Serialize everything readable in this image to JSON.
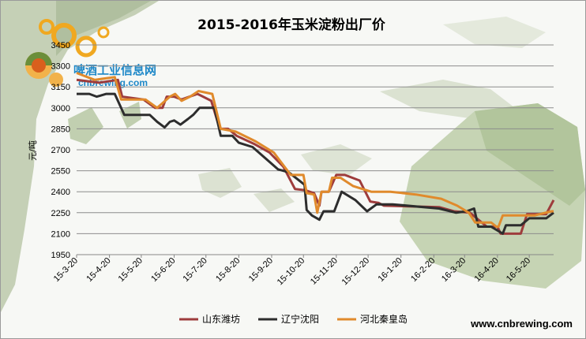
{
  "chart_data": {
    "type": "line",
    "title": "2015-2016年玉米淀粉出厂价",
    "ylabel": "元/吨",
    "xlabel": "",
    "ylim": [
      1950,
      3450
    ],
    "yticks": [
      1950,
      2100,
      2250,
      2400,
      2550,
      2700,
      2850,
      3000,
      3150,
      3300,
      3450
    ],
    "x_range": [
      "2015-03-20",
      "2016-06-12"
    ],
    "xtick_labels": [
      "15-3-20",
      "15-4-20",
      "15-5-20",
      "15-6-20",
      "15-7-20",
      "15-8-20",
      "15-9-20",
      "15-10-20",
      "15-11-20",
      "15-12-20",
      "16-1-20",
      "16-2-20",
      "16-3-20",
      "16-4-20",
      "16-5-20"
    ],
    "grid": "horizontal",
    "legend_position": "bottom",
    "series": [
      {
        "name": "山东潍坊",
        "color": "#9e3c3c",
        "points": [
          [
            "2015-03-20",
            3200
          ],
          [
            "2015-04-10",
            3180
          ],
          [
            "2015-04-28",
            3200
          ],
          [
            "2015-05-02",
            3080
          ],
          [
            "2015-05-22",
            3060
          ],
          [
            "2015-06-02",
            3000
          ],
          [
            "2015-06-09",
            3000
          ],
          [
            "2015-06-13",
            3080
          ],
          [
            "2015-06-20",
            3080
          ],
          [
            "2015-06-27",
            3060
          ],
          [
            "2015-07-12",
            3100
          ],
          [
            "2015-07-25",
            3050
          ],
          [
            "2015-08-02",
            2850
          ],
          [
            "2015-08-10",
            2850
          ],
          [
            "2015-08-18",
            2800
          ],
          [
            "2015-09-04",
            2740
          ],
          [
            "2015-09-18",
            2680
          ],
          [
            "2015-10-01",
            2580
          ],
          [
            "2015-10-12",
            2420
          ],
          [
            "2015-10-22",
            2410
          ],
          [
            "2015-10-30",
            2390
          ],
          [
            "2015-11-04",
            2300
          ],
          [
            "2015-11-06",
            2400
          ],
          [
            "2015-11-13",
            2400
          ],
          [
            "2015-11-20",
            2520
          ],
          [
            "2015-11-28",
            2520
          ],
          [
            "2015-12-12",
            2480
          ],
          [
            "2015-12-22",
            2330
          ],
          [
            "2015-12-30",
            2320
          ],
          [
            "2016-01-04",
            2300
          ],
          [
            "2016-02-25",
            2290
          ],
          [
            "2016-03-10",
            2260
          ],
          [
            "2016-03-25",
            2250
          ],
          [
            "2016-04-10",
            2150
          ],
          [
            "2016-04-20",
            2150
          ],
          [
            "2016-04-23",
            2100
          ],
          [
            "2016-05-12",
            2100
          ],
          [
            "2016-05-18",
            2240
          ],
          [
            "2016-06-05",
            2240
          ],
          [
            "2016-06-12",
            2340
          ]
        ]
      },
      {
        "name": "辽宁沈阳",
        "color": "#2d2d2d",
        "points": [
          [
            "2015-03-20",
            3100
          ],
          [
            "2015-04-01",
            3100
          ],
          [
            "2015-04-08",
            3080
          ],
          [
            "2015-04-17",
            3100
          ],
          [
            "2015-04-25",
            3100
          ],
          [
            "2015-05-04",
            2950
          ],
          [
            "2015-05-16",
            2950
          ],
          [
            "2015-05-28",
            2950
          ],
          [
            "2015-06-04",
            2900
          ],
          [
            "2015-06-11",
            2860
          ],
          [
            "2015-06-16",
            2900
          ],
          [
            "2015-06-20",
            2910
          ],
          [
            "2015-06-26",
            2880
          ],
          [
            "2015-07-03",
            2920
          ],
          [
            "2015-07-08",
            2950
          ],
          [
            "2015-07-14",
            3000
          ],
          [
            "2015-07-28",
            3000
          ],
          [
            "2015-08-03",
            2800
          ],
          [
            "2015-08-14",
            2800
          ],
          [
            "2015-08-20",
            2750
          ],
          [
            "2015-09-02",
            2720
          ],
          [
            "2015-09-14",
            2640
          ],
          [
            "2015-09-26",
            2560
          ],
          [
            "2015-10-06",
            2540
          ],
          [
            "2015-10-21",
            2450
          ],
          [
            "2015-10-23",
            2270
          ],
          [
            "2015-10-28",
            2230
          ],
          [
            "2015-11-04",
            2200
          ],
          [
            "2015-11-08",
            2260
          ],
          [
            "2015-11-18",
            2260
          ],
          [
            "2015-11-25",
            2400
          ],
          [
            "2015-12-08",
            2340
          ],
          [
            "2015-12-19",
            2260
          ],
          [
            "2015-12-28",
            2310
          ],
          [
            "2016-01-12",
            2310
          ],
          [
            "2016-02-25",
            2280
          ],
          [
            "2016-03-12",
            2250
          ],
          [
            "2016-03-22",
            2260
          ],
          [
            "2016-03-29",
            2280
          ],
          [
            "2016-04-02",
            2150
          ],
          [
            "2016-04-14",
            2150
          ],
          [
            "2016-04-25",
            2100
          ],
          [
            "2016-04-28",
            2160
          ],
          [
            "2016-05-12",
            2160
          ],
          [
            "2016-05-20",
            2210
          ],
          [
            "2016-06-05",
            2210
          ],
          [
            "2016-06-12",
            2250
          ]
        ]
      },
      {
        "name": "河北秦皇岛",
        "color": "#e08a2c",
        "points": [
          [
            "2015-03-20",
            3250
          ],
          [
            "2015-04-06",
            3200
          ],
          [
            "2015-04-25",
            3220
          ],
          [
            "2015-05-01",
            3060
          ],
          [
            "2015-05-24",
            3060
          ],
          [
            "2015-06-04",
            3000
          ],
          [
            "2015-06-16",
            3080
          ],
          [
            "2015-06-21",
            3100
          ],
          [
            "2015-06-27",
            3050
          ],
          [
            "2015-07-05",
            3080
          ],
          [
            "2015-07-13",
            3120
          ],
          [
            "2015-07-26",
            3100
          ],
          [
            "2015-08-03",
            2850
          ],
          [
            "2015-08-17",
            2830
          ],
          [
            "2015-09-05",
            2760
          ],
          [
            "2015-09-22",
            2680
          ],
          [
            "2015-10-08",
            2520
          ],
          [
            "2015-10-20",
            2520
          ],
          [
            "2015-10-23",
            2390
          ],
          [
            "2015-10-30",
            2380
          ],
          [
            "2015-11-02",
            2250
          ],
          [
            "2015-11-06",
            2400
          ],
          [
            "2015-11-13",
            2400
          ],
          [
            "2015-11-16",
            2500
          ],
          [
            "2015-11-24",
            2500
          ],
          [
            "2015-12-06",
            2440
          ],
          [
            "2015-12-23",
            2400
          ],
          [
            "2016-01-10",
            2400
          ],
          [
            "2016-02-03",
            2380
          ],
          [
            "2016-02-27",
            2350
          ],
          [
            "2016-03-13",
            2300
          ],
          [
            "2016-03-24",
            2250
          ],
          [
            "2016-03-30",
            2180
          ],
          [
            "2016-04-14",
            2180
          ],
          [
            "2016-04-19",
            2150
          ],
          [
            "2016-04-21",
            2150
          ],
          [
            "2016-04-25",
            2230
          ],
          [
            "2016-05-06",
            2230
          ],
          [
            "2016-05-25",
            2230
          ],
          [
            "2016-06-10",
            2260
          ],
          [
            "2016-06-12",
            2260
          ]
        ]
      }
    ]
  },
  "logo": {
    "brand_cn": "啤酒工业信息网",
    "brand_en": "cnbrewing.com"
  },
  "website": "www.cnbrewing.com"
}
